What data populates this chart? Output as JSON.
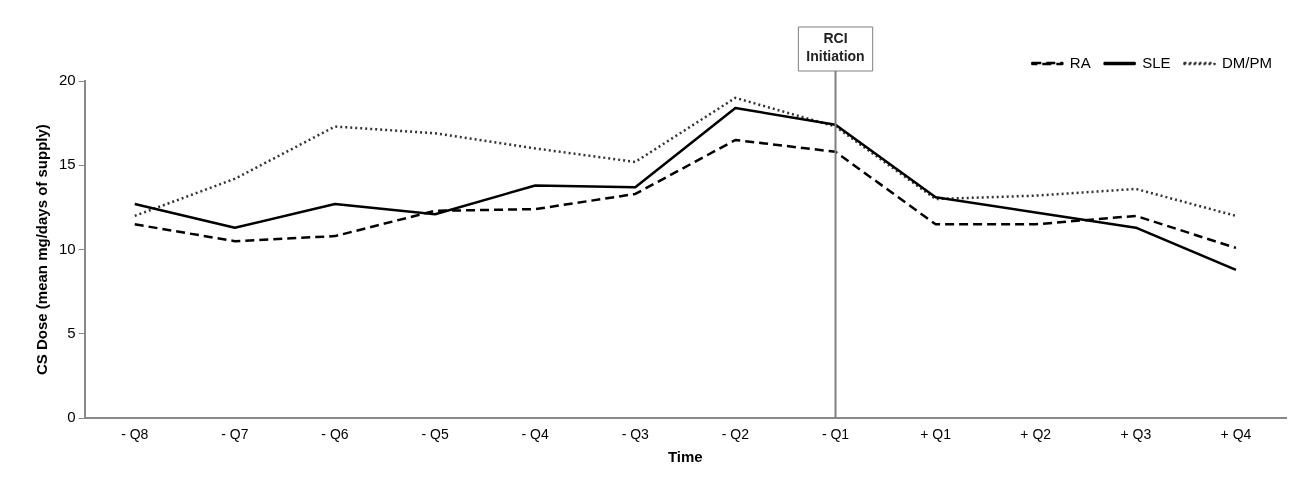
{
  "chart_data": {
    "type": "line",
    "xlabel": "Time",
    "ylabel": "CS Dose (mean mg/days of supply)",
    "categories": [
      "- Q8",
      "- Q7",
      "- Q6",
      "- Q5",
      "- Q4",
      "- Q3",
      "- Q2",
      "- Q1",
      "+ Q1",
      "+ Q2",
      "+ Q3",
      "+ Q4"
    ],
    "series": [
      {
        "name": "RA",
        "color": "#000000",
        "line_style": "dashed",
        "values": [
          11.5,
          10.5,
          10.8,
          12.3,
          12.4,
          13.3,
          16.5,
          15.8,
          11.5,
          11.5,
          12.0,
          10.1
        ]
      },
      {
        "name": "SLE",
        "color": "#000000",
        "line_style": "solid",
        "values": [
          12.7,
          11.3,
          12.7,
          12.1,
          13.8,
          13.7,
          18.4,
          17.4,
          13.1,
          12.2,
          11.3,
          8.8
        ]
      },
      {
        "name": "DM/PM",
        "color": "#333333",
        "line_style": "dotted",
        "values": [
          12.0,
          14.2,
          17.3,
          16.9,
          16.0,
          15.2,
          19.0,
          17.3,
          13.0,
          13.2,
          13.6,
          12.0
        ]
      }
    ],
    "ylim": [
      0,
      20
    ],
    "yticks": [
      0,
      5,
      10,
      15,
      20
    ],
    "grid": false,
    "legend": "top right",
    "marker": "none",
    "ref_lines": [
      {
        "axis": "x",
        "value": "- Q1",
        "label": "RCI Initiation",
        "color": "#808080"
      }
    ]
  }
}
